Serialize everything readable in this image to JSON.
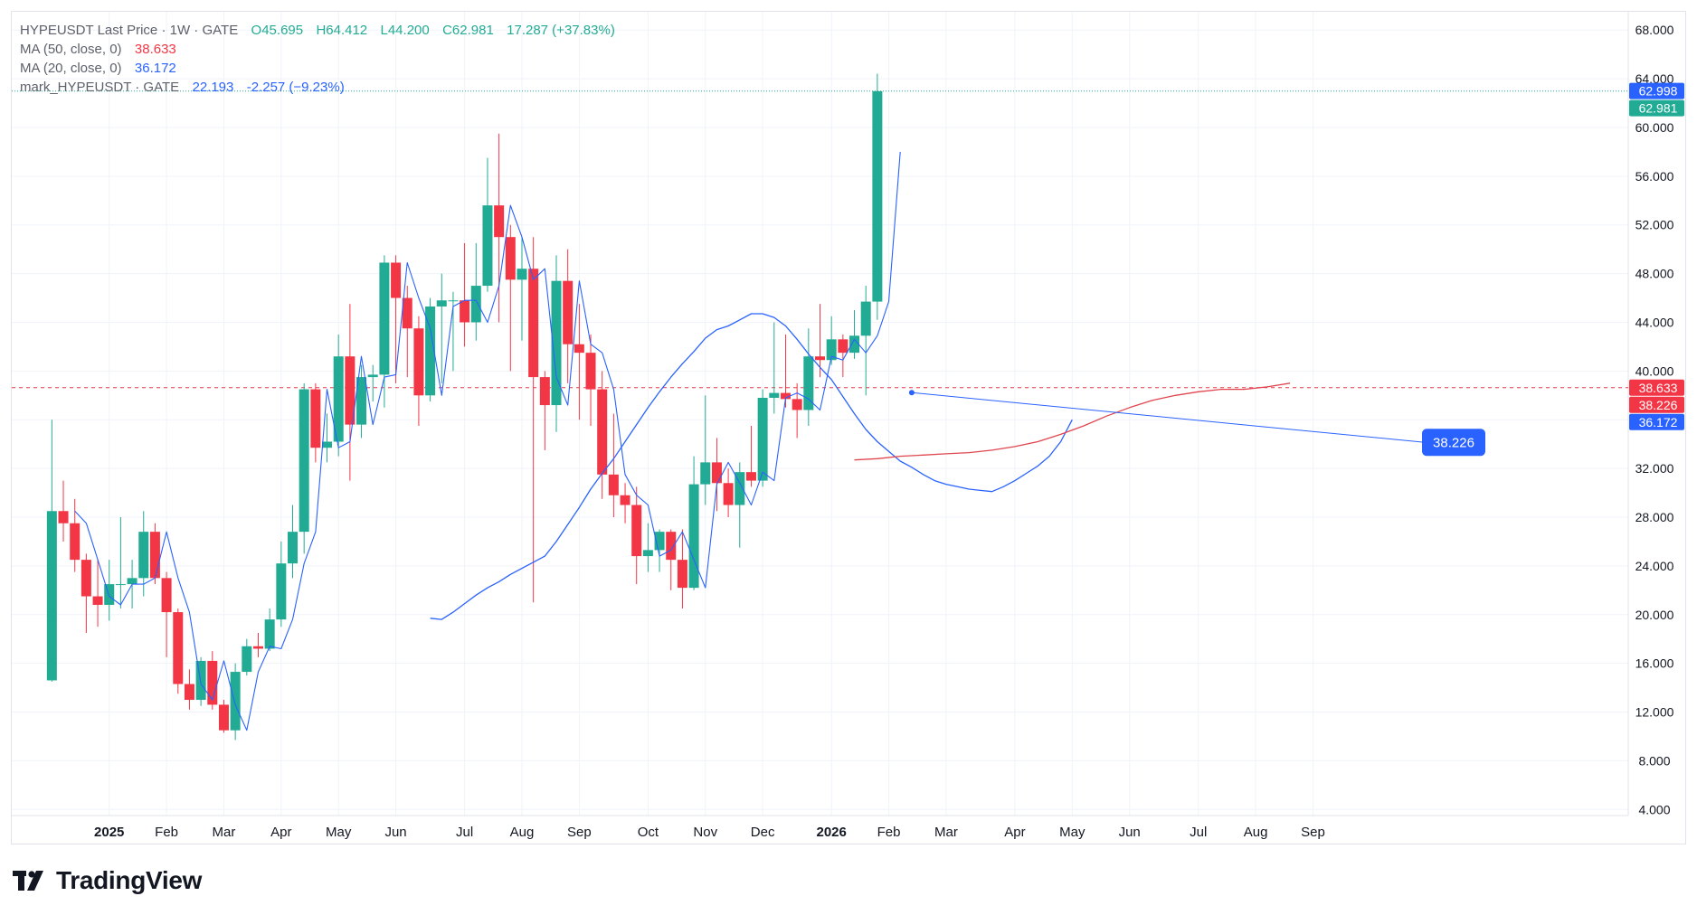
{
  "legend": {
    "symbol": "HYPEUSDT Last Price",
    "interval": "1W",
    "exchange": "GATE",
    "open": "O45.695",
    "high": "H64.412",
    "low": "L44.200",
    "close": "C62.981",
    "change": "17.287 (+37.83%)",
    "ma50_label": "MA (50, close, 0)",
    "ma50_value": "38.633",
    "ma20_label": "MA (20, close, 0)",
    "ma20_value": "36.172",
    "mark_label": "mark_HYPEUSDT · GATE",
    "mark_value": "22.193",
    "mark_change": "-2.257 (−9.23%)"
  },
  "price_tags": [
    {
      "value": 62.998,
      "text": "62.998",
      "color": "#2962ff"
    },
    {
      "value": 62.981,
      "text": "62.981",
      "color": "#22ab94"
    },
    {
      "value": 38.633,
      "text": "38.633",
      "color": "#f23645"
    },
    {
      "value": 38.226,
      "text": "38.226",
      "color": "#f23645"
    },
    {
      "value": 36.172,
      "text": "36.172",
      "color": "#2962ff"
    }
  ],
  "projection_label": {
    "text": "38.226",
    "value": 38.226
  },
  "brand": {
    "name": "TradingView"
  },
  "chart_data": {
    "type": "candlestick",
    "title": "HYPEUSDT Last Price · 1W · GATE",
    "y_ticks": [
      "4.000",
      "8.000",
      "12.000",
      "16.000",
      "20.000",
      "24.000",
      "28.000",
      "32.000",
      "36.000",
      "40.000",
      "44.000",
      "48.000",
      "52.000",
      "56.000",
      "60.000",
      "64.000",
      "68.000"
    ],
    "ylim": [
      3.5,
      69.5
    ],
    "xlim": [
      -5.5,
      135.5
    ],
    "x_ticks": [
      {
        "label": "2025",
        "week": 3,
        "bold": true
      },
      {
        "label": "Feb",
        "week": 8
      },
      {
        "label": "Mar",
        "week": 13
      },
      {
        "label": "Apr",
        "week": 18
      },
      {
        "label": "May",
        "week": 23
      },
      {
        "label": "Jun",
        "week": 28
      },
      {
        "label": "Jul",
        "week": 34
      },
      {
        "label": "Aug",
        "week": 39
      },
      {
        "label": "Sep",
        "week": 44
      },
      {
        "label": "Oct",
        "week": 50
      },
      {
        "label": "Nov",
        "week": 55
      },
      {
        "label": "Dec",
        "week": 60
      },
      {
        "label": "2026",
        "week": 66,
        "bold": true
      },
      {
        "label": "Feb",
        "week": 71
      },
      {
        "label": "Mar",
        "week": 76
      },
      {
        "label": "Apr",
        "week": 82
      },
      {
        "label": "May",
        "week": 87
      },
      {
        "label": "Jun",
        "week": 92
      },
      {
        "label": "Jul",
        "week": 98
      },
      {
        "label": "Aug",
        "week": 103
      },
      {
        "label": "Sep",
        "week": 108
      }
    ],
    "candles": [
      [
        14.6,
        28.5,
        14.5,
        36.0
      ],
      [
        28.5,
        27.5,
        26.0,
        31.0
      ],
      [
        27.5,
        24.5,
        23.5,
        29.5
      ],
      [
        24.5,
        21.5,
        18.5,
        25.0
      ],
      [
        21.5,
        20.8,
        19.0,
        24.5
      ],
      [
        20.8,
        22.5,
        19.5,
        24.5
      ],
      [
        22.5,
        22.5,
        20.5,
        28.0
      ],
      [
        22.5,
        23.0,
        20.5,
        24.5
      ],
      [
        23.0,
        26.8,
        21.5,
        28.5
      ],
      [
        26.8,
        23.0,
        22.5,
        27.5
      ],
      [
        23.0,
        20.2,
        16.5,
        23.5
      ],
      [
        20.2,
        14.3,
        13.5,
        20.5
      ],
      [
        14.3,
        13.0,
        12.2,
        15.5
      ],
      [
        13.0,
        16.2,
        12.5,
        16.5
      ],
      [
        16.2,
        12.6,
        12.2,
        17.0
      ],
      [
        12.6,
        10.5,
        10.3,
        13.0
      ],
      [
        10.5,
        15.3,
        9.7,
        16.0
      ],
      [
        15.3,
        17.4,
        15.0,
        18.0
      ],
      [
        17.4,
        17.2,
        16.5,
        18.5
      ],
      [
        17.2,
        19.6,
        17.0,
        20.5
      ],
      [
        19.6,
        24.2,
        19.0,
        26.0
      ],
      [
        24.2,
        26.8,
        23.0,
        29.0
      ],
      [
        26.8,
        38.5,
        25.0,
        39.0
      ],
      [
        38.5,
        33.7,
        32.5,
        39.0
      ],
      [
        33.7,
        34.2,
        32.5,
        36.5
      ],
      [
        34.2,
        41.2,
        33.0,
        43.0
      ],
      [
        41.2,
        35.6,
        31.0,
        45.5
      ],
      [
        35.6,
        39.5,
        34.5,
        40.5
      ],
      [
        39.5,
        39.7,
        37.5,
        40.5
      ],
      [
        39.7,
        48.9,
        37.0,
        49.5
      ],
      [
        48.9,
        46.0,
        39.0,
        49.5
      ],
      [
        46.0,
        43.5,
        39.5,
        47.0
      ],
      [
        43.5,
        38.0,
        35.5,
        44.5
      ],
      [
        38.0,
        45.3,
        37.5,
        46.0
      ],
      [
        45.3,
        45.8,
        39.0,
        48.0
      ],
      [
        45.8,
        45.8,
        40.0,
        46.5
      ],
      [
        45.8,
        44.0,
        42.0,
        50.5
      ],
      [
        44.0,
        47.0,
        42.5,
        50.5
      ],
      [
        47.0,
        53.6,
        46.5,
        57.5
      ],
      [
        53.6,
        51.0,
        44.0,
        59.5
      ],
      [
        51.0,
        47.5,
        40.0,
        52.0
      ],
      [
        47.5,
        48.4,
        42.5,
        51.0
      ],
      [
        48.4,
        39.5,
        21.0,
        51.0
      ],
      [
        39.5,
        37.2,
        33.5,
        40.0
      ],
      [
        37.2,
        47.4,
        35.0,
        49.5
      ],
      [
        47.4,
        42.2,
        39.0,
        50.0
      ],
      [
        42.2,
        41.5,
        36.0,
        45.5
      ],
      [
        41.5,
        38.5,
        35.5,
        43.0
      ],
      [
        38.5,
        31.5,
        29.5,
        40.0
      ],
      [
        31.5,
        29.8,
        28.0,
        36.5
      ],
      [
        29.8,
        29.0,
        27.5,
        30.8
      ],
      [
        29.0,
        24.8,
        22.5,
        30.5
      ],
      [
        24.8,
        25.3,
        23.5,
        27.5
      ],
      [
        25.3,
        26.8,
        23.5,
        27.0
      ],
      [
        26.8,
        24.5,
        22.0,
        27.0
      ],
      [
        24.5,
        22.2,
        20.5,
        27.0
      ],
      [
        22.2,
        30.7,
        22.0,
        33.0
      ],
      [
        30.7,
        32.5,
        29.0,
        38.0
      ],
      [
        32.5,
        30.8,
        28.5,
        34.5
      ],
      [
        30.8,
        29.0,
        28.0,
        32.0
      ],
      [
        29.0,
        31.7,
        25.5,
        32.5
      ],
      [
        31.7,
        31.0,
        30.5,
        35.5
      ],
      [
        31.0,
        37.8,
        30.5,
        38.5
      ],
      [
        37.8,
        38.2,
        36.5,
        44.0
      ],
      [
        38.2,
        37.7,
        37.0,
        43.0
      ],
      [
        37.7,
        36.8,
        34.5,
        39.0
      ],
      [
        36.8,
        41.2,
        35.5,
        43.5
      ],
      [
        41.2,
        40.9,
        39.5,
        45.5
      ],
      [
        40.9,
        42.6,
        40.5,
        44.5
      ],
      [
        42.6,
        41.5,
        39.5,
        43.0
      ],
      [
        41.5,
        42.9,
        41.0,
        45.0
      ],
      [
        42.9,
        45.7,
        38.0,
        47.0
      ],
      [
        45.7,
        62.981,
        44.2,
        64.412
      ]
    ],
    "first_candle_week": -2,
    "ma20": [
      [
        31,
        19.7
      ],
      [
        32,
        19.6
      ],
      [
        33,
        20.2
      ],
      [
        34,
        20.9
      ],
      [
        35,
        21.6
      ],
      [
        36,
        22.2
      ],
      [
        37,
        22.7
      ],
      [
        38,
        23.3
      ],
      [
        39,
        23.8
      ],
      [
        40,
        24.3
      ],
      [
        41,
        24.8
      ],
      [
        42,
        26.0
      ],
      [
        43,
        27.4
      ],
      [
        44,
        28.8
      ],
      [
        45,
        30.3
      ],
      [
        46,
        31.6
      ],
      [
        47,
        32.8
      ],
      [
        48,
        34.2
      ],
      [
        49,
        35.6
      ],
      [
        50,
        37.0
      ],
      [
        51,
        38.3
      ],
      [
        52,
        39.5
      ],
      [
        53,
        40.6
      ],
      [
        54,
        41.6
      ],
      [
        55,
        42.7
      ],
      [
        56,
        43.4
      ],
      [
        57,
        43.7
      ],
      [
        58,
        44.2
      ],
      [
        59,
        44.7
      ],
      [
        60,
        44.7
      ],
      [
        61,
        44.4
      ],
      [
        62,
        43.7
      ],
      [
        63,
        42.6
      ],
      [
        64,
        41.4
      ],
      [
        65,
        40.3
      ],
      [
        66,
        39.3
      ],
      [
        67,
        37.9
      ],
      [
        68,
        36.5
      ],
      [
        69,
        35.2
      ],
      [
        70,
        34.2
      ],
      [
        71,
        33.4
      ],
      [
        72,
        32.6
      ],
      [
        73,
        32.1
      ],
      [
        74,
        31.5
      ],
      [
        75,
        31.0
      ],
      [
        76,
        30.7
      ],
      [
        77,
        30.5
      ],
      [
        78,
        30.3
      ],
      [
        79,
        30.2
      ],
      [
        80,
        30.1
      ],
      [
        81,
        30.5
      ],
      [
        82,
        31.0
      ],
      [
        83,
        31.6
      ],
      [
        84,
        32.2
      ],
      [
        85,
        33.0
      ],
      [
        86,
        34.2
      ],
      [
        87,
        36.0
      ]
    ],
    "ma50": [
      [
        68,
        32.7
      ],
      [
        70,
        32.8
      ],
      [
        72,
        33.0
      ],
      [
        74,
        33.1
      ],
      [
        76,
        33.2
      ],
      [
        78,
        33.3
      ],
      [
        80,
        33.5
      ],
      [
        82,
        33.8
      ],
      [
        84,
        34.2
      ],
      [
        86,
        34.8
      ],
      [
        88,
        35.5
      ],
      [
        90,
        36.3
      ],
      [
        92,
        37.0
      ],
      [
        94,
        37.6
      ],
      [
        96,
        38.0
      ],
      [
        98,
        38.3
      ],
      [
        100,
        38.5
      ],
      [
        102,
        38.5
      ],
      [
        104,
        38.7
      ],
      [
        106,
        39.0
      ]
    ],
    "mark_price": [
      [
        0,
        28.5
      ],
      [
        1,
        27.5
      ],
      [
        2,
        24.5
      ],
      [
        3,
        21.5
      ],
      [
        4,
        20.8
      ],
      [
        5,
        22.5
      ],
      [
        6,
        22.5
      ],
      [
        7,
        23.0
      ],
      [
        8,
        26.8
      ],
      [
        9,
        23.0
      ],
      [
        10,
        20.2
      ],
      [
        11,
        14.3
      ],
      [
        12,
        13.0
      ],
      [
        13,
        16.2
      ],
      [
        14,
        12.6
      ],
      [
        15,
        10.5
      ],
      [
        16,
        15.3
      ],
      [
        17,
        17.4
      ],
      [
        18,
        17.2
      ],
      [
        19,
        19.6
      ],
      [
        20,
        24.2
      ],
      [
        21,
        26.8
      ],
      [
        22,
        38.5
      ],
      [
        23,
        33.7
      ],
      [
        24,
        34.2
      ],
      [
        25,
        41.2
      ],
      [
        26,
        35.6
      ],
      [
        27,
        39.5
      ],
      [
        28,
        39.7
      ],
      [
        29,
        48.9
      ],
      [
        30,
        46.0
      ],
      [
        31,
        43.5
      ],
      [
        32,
        38.0
      ],
      [
        33,
        45.3
      ],
      [
        34,
        45.8
      ],
      [
        35,
        45.8
      ],
      [
        36,
        44.0
      ],
      [
        37,
        47.0
      ],
      [
        38,
        53.6
      ],
      [
        39,
        51.0
      ],
      [
        40,
        47.5
      ],
      [
        41,
        48.4
      ],
      [
        42,
        39.5
      ],
      [
        43,
        37.2
      ],
      [
        44,
        47.4
      ],
      [
        45,
        42.2
      ],
      [
        46,
        41.5
      ],
      [
        47,
        38.5
      ],
      [
        48,
        31.5
      ],
      [
        49,
        29.8
      ],
      [
        50,
        29.0
      ],
      [
        51,
        24.8
      ],
      [
        52,
        25.3
      ],
      [
        53,
        26.8
      ],
      [
        54,
        24.5
      ],
      [
        55,
        22.2
      ],
      [
        56,
        30.7
      ],
      [
        57,
        32.5
      ],
      [
        58,
        30.8
      ],
      [
        59,
        29.0
      ],
      [
        60,
        31.7
      ],
      [
        61,
        31.0
      ],
      [
        62,
        37.8
      ],
      [
        63,
        38.2
      ],
      [
        64,
        37.7
      ],
      [
        65,
        36.8
      ],
      [
        66,
        41.2
      ],
      [
        67,
        40.9
      ],
      [
        68,
        42.6
      ],
      [
        69,
        41.5
      ],
      [
        70,
        42.9
      ],
      [
        71,
        45.7
      ],
      [
        72,
        58.0
      ]
    ],
    "ma50_level": 38.633,
    "last_price_level": 62.981,
    "projection_point": {
      "week": 73,
      "value": 38.226
    },
    "colors": {
      "up": "#22ab94",
      "down": "#f23645",
      "ma20": "#2962ff",
      "ma50": "#e0464f",
      "mark": "#2962ff"
    }
  }
}
